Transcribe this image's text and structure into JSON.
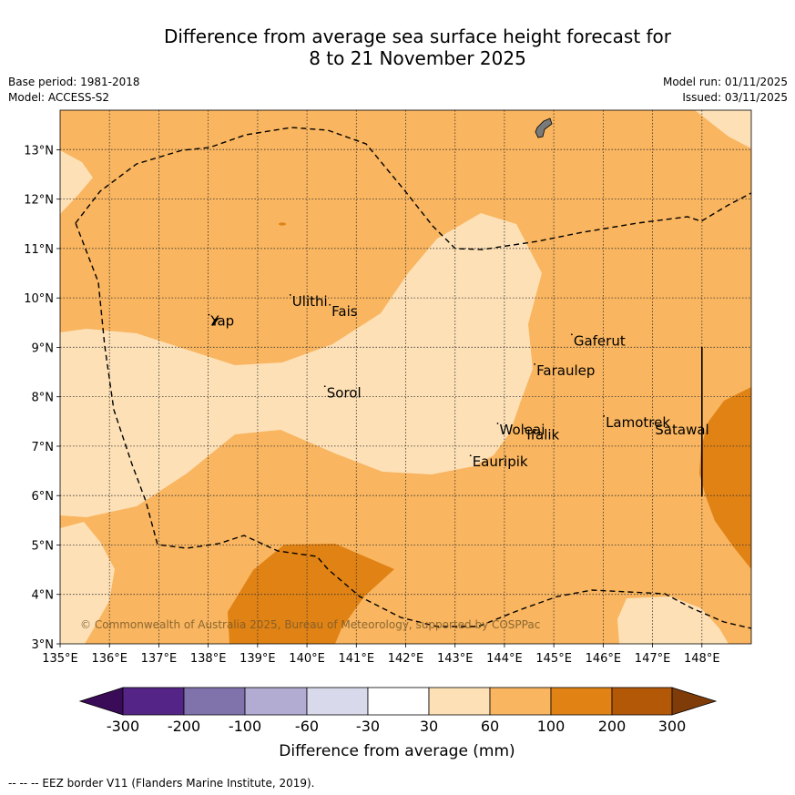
{
  "title": {
    "line1": "Difference from average sea surface height forecast for",
    "line2": "8 to 21 November 2025"
  },
  "meta": {
    "base_period": "Base period: 1981-2018",
    "model": "Model: ACCESS-S2",
    "model_run": "Model run: 01/11/2025",
    "issued": "Issued: 03/11/2025"
  },
  "map": {
    "lon_range": [
      135,
      149
    ],
    "lat_range": [
      3,
      13.8
    ],
    "lon_ticks": [
      "135°E",
      "136°E",
      "137°E",
      "138°E",
      "139°E",
      "140°E",
      "141°E",
      "142°E",
      "143°E",
      "144°E",
      "145°E",
      "146°E",
      "147°E",
      "148°E"
    ],
    "lat_ticks": [
      "3°N",
      "4°N",
      "5°N",
      "6°N",
      "7°N",
      "8°N",
      "9°N",
      "10°N",
      "11°N",
      "12°N",
      "13°N"
    ],
    "copyright": "© Commonwealth of Australia 2025, Bureau of Meteorology, supported by COSPPac",
    "places": [
      {
        "name": "Yap",
        "lon": 138.05,
        "lat": 9.55
      },
      {
        "name": "Ulithi",
        "lon": 139.7,
        "lat": 9.95
      },
      {
        "name": "Fais",
        "lon": 140.5,
        "lat": 9.75
      },
      {
        "name": "Gaferut",
        "lon": 145.4,
        "lat": 9.15
      },
      {
        "name": "Faraulep",
        "lon": 144.65,
        "lat": 8.55
      },
      {
        "name": "Sorol",
        "lon": 140.4,
        "lat": 8.1
      },
      {
        "name": "Woleai",
        "lon": 143.9,
        "lat": 7.35
      },
      {
        "name": "Ifalik",
        "lon": 144.45,
        "lat": 7.25
      },
      {
        "name": "Lamotrek",
        "lon": 146.05,
        "lat": 7.5
      },
      {
        "name": "Satawal",
        "lon": 147.05,
        "lat": 7.35
      },
      {
        "name": "Eauripik",
        "lon": 143.35,
        "lat": 6.7
      }
    ]
  },
  "colorbar": {
    "title": "Difference from average (mm)",
    "ticks": [
      "-300",
      "-200",
      "-100",
      "-60",
      "-30",
      "30",
      "60",
      "100",
      "200",
      "300"
    ],
    "colors": {
      "lt_neg300": "#3a0b57",
      "neg300_neg200": "#542586",
      "neg200_neg100": "#8073ac",
      "neg100_neg60": "#b2abd2",
      "neg60_neg30": "#d8daeb",
      "neg30_30": "#ffffff",
      "b30_60": "#fde0b6",
      "b60_100": "#f9b55f",
      "b100_200": "#e08214",
      "b200_300": "#b35806",
      "gt_300": "#7f3b08"
    }
  },
  "footer": "--  --  -- EEZ border V11 (Flanders Marine Institute, 2019)."
}
